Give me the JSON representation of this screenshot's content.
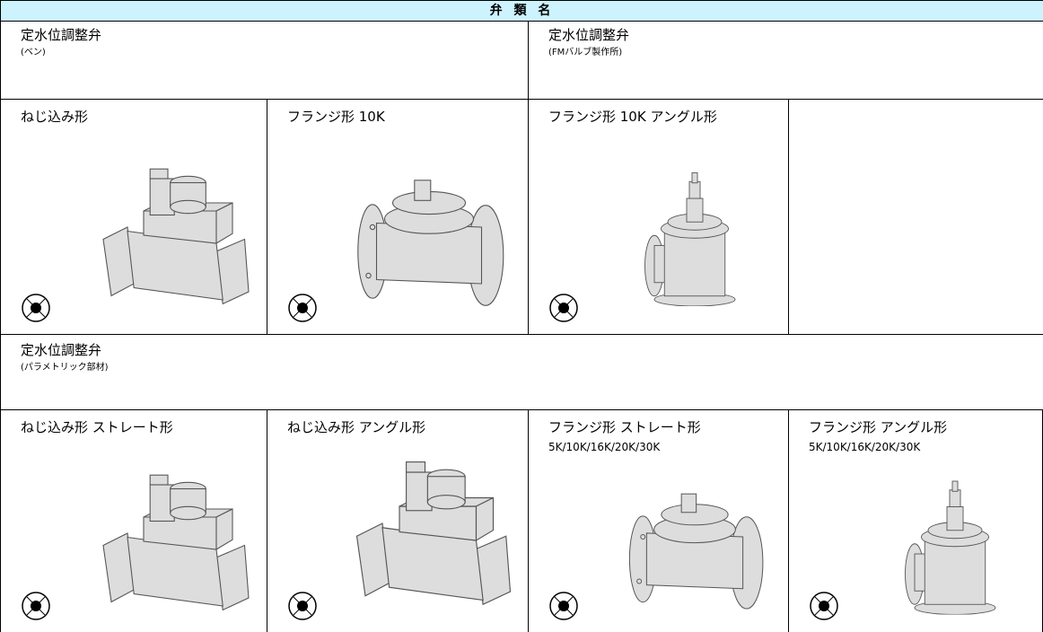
{
  "header": {
    "title": "弁 類 名"
  },
  "section1": {
    "cells": [
      {
        "title": "定水位調整弁",
        "subtitle": "(ベン)"
      },
      {
        "title": "定水位調整弁",
        "subtitle": "(FMバルブ製作所)"
      }
    ]
  },
  "items1": [
    {
      "label": "ねじ込み形"
    },
    {
      "label": "フランジ形 10K"
    },
    {
      "label": "フランジ形 10K アングル形"
    }
  ],
  "section2": {
    "title": "定水位調整弁",
    "subtitle": "(パラメトリック部材)"
  },
  "items2": [
    {
      "label": "ねじ込み形 ストレート形"
    },
    {
      "label": "ねじ込み形 アングル形"
    },
    {
      "label": "フランジ形 ストレート形",
      "note": "5K/10K/16K/20K/30K"
    },
    {
      "label": "フランジ形 アングル形",
      "note": "5K/10K/16K/20K/30K"
    }
  ]
}
